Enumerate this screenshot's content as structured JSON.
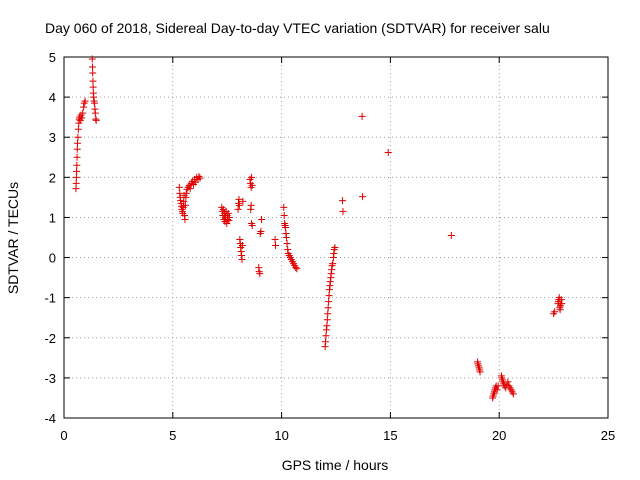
{
  "chart_data": {
    "type": "scatter",
    "title": "Day 060 of 2018, Sidereal Day-to-day VTEC variation (SDTVAR) for receiver salu",
    "xlabel": "GPS time / hours",
    "ylabel": "SDTVAR / TECUs",
    "xlim": [
      0,
      25
    ],
    "ylim": [
      -4,
      5
    ],
    "xticks": [
      0,
      5,
      10,
      15,
      20,
      25
    ],
    "yticks": [
      -4,
      -3,
      -2,
      -1,
      0,
      1,
      2,
      3,
      4,
      5
    ],
    "xtick_labels": [
      "0",
      "5",
      "10",
      "15",
      "20",
      "25"
    ],
    "ytick_labels": [
      "-4",
      "-3",
      "-2",
      "-1",
      "0",
      "1",
      "2",
      "3",
      "4",
      "5"
    ],
    "grid": true,
    "marker": "+",
    "color": "#e00000",
    "series": [
      {
        "name": "SDTVAR",
        "points": [
          [
            0.55,
            1.72
          ],
          [
            0.56,
            1.85
          ],
          [
            0.57,
            2.0
          ],
          [
            0.58,
            2.15
          ],
          [
            0.59,
            2.3
          ],
          [
            0.6,
            2.5
          ],
          [
            0.61,
            2.7
          ],
          [
            0.62,
            2.85
          ],
          [
            0.64,
            3.0
          ],
          [
            0.66,
            3.2
          ],
          [
            0.68,
            3.35
          ],
          [
            0.7,
            3.45
          ],
          [
            0.72,
            3.5
          ],
          [
            0.75,
            3.42
          ],
          [
            0.78,
            3.55
          ],
          [
            0.82,
            3.48
          ],
          [
            0.86,
            3.6
          ],
          [
            0.9,
            3.75
          ],
          [
            0.93,
            3.85
          ],
          [
            0.97,
            3.9
          ],
          [
            1.3,
            4.95
          ],
          [
            1.31,
            4.75
          ],
          [
            1.32,
            4.6
          ],
          [
            1.33,
            4.4
          ],
          [
            1.34,
            4.25
          ],
          [
            1.35,
            4.1
          ],
          [
            1.36,
            4.0
          ],
          [
            1.38,
            3.9
          ],
          [
            1.4,
            3.85
          ],
          [
            1.42,
            3.7
          ],
          [
            1.44,
            3.6
          ],
          [
            1.46,
            3.45
          ],
          [
            1.48,
            3.42
          ],
          [
            5.3,
            1.75
          ],
          [
            5.32,
            1.6
          ],
          [
            5.34,
            1.5
          ],
          [
            5.36,
            1.42
          ],
          [
            5.38,
            1.35
          ],
          [
            5.4,
            1.28
          ],
          [
            5.42,
            1.2
          ],
          [
            5.44,
            1.15
          ],
          [
            5.46,
            1.1
          ],
          [
            5.48,
            1.25
          ],
          [
            5.5,
            1.4
          ],
          [
            5.52,
            1.55
          ],
          [
            5.54,
            1.05
          ],
          [
            5.56,
            0.95
          ],
          [
            5.58,
            1.3
          ],
          [
            5.6,
            1.5
          ],
          [
            5.62,
            1.6
          ],
          [
            5.65,
            1.7
          ],
          [
            5.7,
            1.75
          ],
          [
            5.75,
            1.8
          ],
          [
            5.8,
            1.72
          ],
          [
            5.85,
            1.85
          ],
          [
            5.9,
            1.9
          ],
          [
            5.95,
            1.82
          ],
          [
            6.0,
            1.95
          ],
          [
            6.05,
            1.88
          ],
          [
            6.1,
            2.0
          ],
          [
            6.15,
            1.95
          ],
          [
            6.2,
            2.02
          ],
          [
            6.25,
            1.98
          ],
          [
            7.25,
            1.25
          ],
          [
            7.28,
            1.15
          ],
          [
            7.3,
            1.05
          ],
          [
            7.32,
            1.2
          ],
          [
            7.35,
            0.95
          ],
          [
            7.38,
            1.1
          ],
          [
            7.4,
            0.9
          ],
          [
            7.42,
            1.0
          ],
          [
            7.45,
            1.15
          ],
          [
            7.48,
            0.85
          ],
          [
            7.5,
            1.05
          ],
          [
            7.52,
            0.95
          ],
          [
            7.55,
            1.1
          ],
          [
            7.58,
            0.92
          ],
          [
            7.6,
            1.0
          ],
          [
            8.0,
            1.2
          ],
          [
            8.02,
            1.35
          ],
          [
            8.04,
            1.45
          ],
          [
            8.06,
            1.3
          ],
          [
            8.08,
            0.45
          ],
          [
            8.1,
            0.35
          ],
          [
            8.12,
            0.25
          ],
          [
            8.14,
            0.15
          ],
          [
            8.16,
            0.05
          ],
          [
            8.18,
            -0.05
          ],
          [
            8.2,
            0.3
          ],
          [
            8.22,
            1.4
          ],
          [
            8.55,
            1.95
          ],
          [
            8.57,
            1.85
          ],
          [
            8.6,
            1.75
          ],
          [
            8.62,
            2.0
          ],
          [
            8.65,
            1.8
          ],
          [
            8.6,
            1.3
          ],
          [
            8.58,
            1.2
          ],
          [
            8.62,
            0.85
          ],
          [
            8.65,
            0.8
          ],
          [
            8.95,
            -0.25
          ],
          [
            8.97,
            -0.35
          ],
          [
            9.0,
            -0.4
          ],
          [
            9.02,
            0.6
          ],
          [
            9.05,
            0.65
          ],
          [
            9.08,
            0.95
          ],
          [
            9.7,
            0.45
          ],
          [
            9.72,
            0.3
          ],
          [
            10.1,
            1.25
          ],
          [
            10.12,
            1.05
          ],
          [
            10.14,
            0.85
          ],
          [
            10.16,
            0.8
          ],
          [
            10.18,
            0.75
          ],
          [
            10.2,
            0.6
          ],
          [
            10.22,
            0.5
          ],
          [
            10.25,
            0.35
          ],
          [
            10.28,
            0.2
          ],
          [
            10.3,
            0.1
          ],
          [
            10.35,
            0.05
          ],
          [
            10.4,
            0.0
          ],
          [
            10.45,
            -0.05
          ],
          [
            10.5,
            -0.1
          ],
          [
            10.55,
            -0.15
          ],
          [
            10.6,
            -0.2
          ],
          [
            10.65,
            -0.25
          ],
          [
            10.7,
            -0.28
          ],
          [
            12.0,
            -2.22
          ],
          [
            12.02,
            -2.1
          ],
          [
            12.04,
            -1.95
          ],
          [
            12.06,
            -1.8
          ],
          [
            12.08,
            -1.7
          ],
          [
            12.1,
            -1.55
          ],
          [
            12.12,
            -1.4
          ],
          [
            12.14,
            -1.25
          ],
          [
            12.16,
            -1.1
          ],
          [
            12.18,
            -0.95
          ],
          [
            12.2,
            -0.8
          ],
          [
            12.22,
            -0.7
          ],
          [
            12.24,
            -0.6
          ],
          [
            12.26,
            -0.5
          ],
          [
            12.28,
            -0.4
          ],
          [
            12.3,
            -0.3
          ],
          [
            12.32,
            -0.2
          ],
          [
            12.35,
            -0.15
          ],
          [
            12.38,
            0.0
          ],
          [
            12.4,
            0.1
          ],
          [
            12.42,
            0.2
          ],
          [
            12.45,
            0.25
          ],
          [
            12.8,
            1.42
          ],
          [
            12.82,
            1.15
          ],
          [
            13.7,
            3.52
          ],
          [
            13.72,
            1.52
          ],
          [
            14.9,
            2.62
          ],
          [
            17.8,
            0.55
          ],
          [
            19.0,
            -2.6
          ],
          [
            19.02,
            -2.65
          ],
          [
            19.05,
            -2.7
          ],
          [
            19.08,
            -2.75
          ],
          [
            19.1,
            -2.8
          ],
          [
            19.12,
            -2.85
          ],
          [
            19.7,
            -3.5
          ],
          [
            19.72,
            -3.45
          ],
          [
            19.75,
            -3.4
          ],
          [
            19.78,
            -3.35
          ],
          [
            19.8,
            -3.3
          ],
          [
            19.83,
            -3.25
          ],
          [
            19.86,
            -3.2
          ],
          [
            19.9,
            -3.3
          ],
          [
            19.95,
            -3.2
          ],
          [
            20.1,
            -2.95
          ],
          [
            20.12,
            -3.0
          ],
          [
            20.15,
            -3.05
          ],
          [
            20.18,
            -3.1
          ],
          [
            20.2,
            -3.15
          ],
          [
            20.25,
            -3.2
          ],
          [
            20.3,
            -3.25
          ],
          [
            20.35,
            -3.18
          ],
          [
            20.4,
            -3.1
          ],
          [
            20.45,
            -3.2
          ],
          [
            20.5,
            -3.25
          ],
          [
            20.55,
            -3.3
          ],
          [
            20.6,
            -3.35
          ],
          [
            20.65,
            -3.4
          ],
          [
            22.5,
            -1.4
          ],
          [
            22.55,
            -1.35
          ],
          [
            22.7,
            -1.15
          ],
          [
            22.72,
            -1.1
          ],
          [
            22.74,
            -1.05
          ],
          [
            22.76,
            -1.0
          ],
          [
            22.78,
            -1.25
          ],
          [
            22.8,
            -1.3
          ],
          [
            22.82,
            -1.2
          ],
          [
            22.85,
            -1.05
          ],
          [
            22.88,
            -1.15
          ]
        ]
      }
    ]
  }
}
